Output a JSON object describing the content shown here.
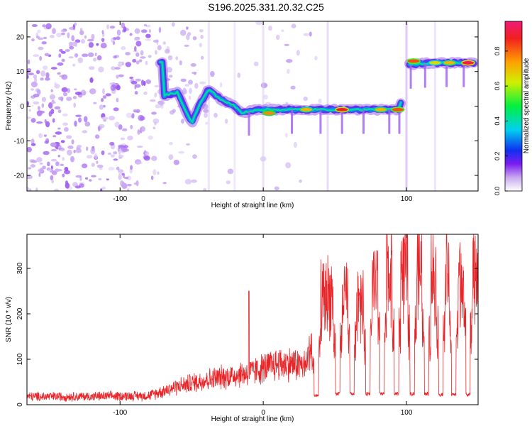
{
  "page": {
    "title": "S196.2025.331.20.32.C25"
  },
  "chart_data": [
    {
      "type": "heatmap",
      "name": "spectrogram",
      "xlabel": "Height of straight line (km)",
      "ylabel": "Frequency (Hz)",
      "xlim": [
        -165,
        150
      ],
      "ylim": [
        -24.5,
        24.5
      ],
      "xticks": [
        -100,
        0,
        100
      ],
      "yticks": [
        -20,
        -10,
        0,
        10,
        20
      ],
      "colorbar": {
        "label": "Normalized spectral amplitude",
        "range": [
          0,
          0.97
        ],
        "ticks": [
          0.0,
          0.2,
          0.4,
          0.6,
          0.8
        ],
        "colors": [
          "#ffffff",
          "#c8a8f0",
          "#7a1cf0",
          "#1030f0",
          "#00d0f0",
          "#00f040",
          "#d0f000",
          "#ffa000",
          "#f02020",
          "#f01a78"
        ]
      },
      "ridge": [
        {
          "x": -70,
          "y": 3
        },
        {
          "x": -60,
          "y": 4
        },
        {
          "x": -50,
          "y": -5
        },
        {
          "x": -45,
          "y": 0
        },
        {
          "x": -38,
          "y": 5
        },
        {
          "x": -30,
          "y": 2
        },
        {
          "x": -20,
          "y": 0
        },
        {
          "x": -15,
          "y": -2
        },
        {
          "x": -5,
          "y": -1
        },
        {
          "x": 10,
          "y": -1
        },
        {
          "x": 30,
          "y": -1
        },
        {
          "x": 50,
          "y": -1
        },
        {
          "x": 70,
          "y": -1
        },
        {
          "x": 95,
          "y": -1
        },
        {
          "x": 102,
          "y": 12
        },
        {
          "x": 120,
          "y": 12.5
        },
        {
          "x": 145,
          "y": 12.5
        }
      ],
      "hotspots": [
        {
          "x": 4,
          "y": -2,
          "amp": 0.8
        },
        {
          "x": 30,
          "y": -1,
          "amp": 0.75
        },
        {
          "x": 55,
          "y": -1,
          "amp": 0.9
        },
        {
          "x": 82,
          "y": -1,
          "amp": 0.75
        },
        {
          "x": 94,
          "y": -1,
          "amp": 0.85
        },
        {
          "x": 105,
          "y": 13,
          "amp": 0.85
        },
        {
          "x": 120,
          "y": 12.5,
          "amp": 0.7
        },
        {
          "x": 130,
          "y": 12.5,
          "amp": 0.75
        },
        {
          "x": 143,
          "y": 12.5,
          "amp": 0.95
        }
      ]
    },
    {
      "type": "line",
      "name": "snr",
      "xlabel": "Height of straight line (km)",
      "ylabel": "SNR (10 * v/v)",
      "xlim": [
        -165,
        150
      ],
      "ylim": [
        0,
        375
      ],
      "xticks": [
        -100,
        0,
        100
      ],
      "yticks": [
        0,
        100,
        200,
        300
      ],
      "color": "#e8262a",
      "envelope": [
        {
          "x": -165,
          "y": 18
        },
        {
          "x": -120,
          "y": 18
        },
        {
          "x": -80,
          "y": 20
        },
        {
          "x": -60,
          "y": 40
        },
        {
          "x": -40,
          "y": 55
        },
        {
          "x": -20,
          "y": 65
        },
        {
          "x": -10,
          "y": 70
        },
        {
          "x": 0,
          "y": 80
        },
        {
          "x": 10,
          "y": 90
        },
        {
          "x": 20,
          "y": 90
        },
        {
          "x": 30,
          "y": 85
        },
        {
          "x": 35,
          "y": 160
        },
        {
          "x": 40,
          "y": 230
        },
        {
          "x": 50,
          "y": 250
        },
        {
          "x": 60,
          "y": 230
        },
        {
          "x": 70,
          "y": 250
        },
        {
          "x": 80,
          "y": 270
        },
        {
          "x": 90,
          "y": 300
        },
        {
          "x": 100,
          "y": 300
        },
        {
          "x": 110,
          "y": 290
        },
        {
          "x": 120,
          "y": 285
        },
        {
          "x": 130,
          "y": 280
        },
        {
          "x": 140,
          "y": 290
        },
        {
          "x": 150,
          "y": 300
        }
      ],
      "spikes": [
        {
          "x": -10,
          "y": 250
        },
        {
          "x": -58,
          "y": 30
        }
      ],
      "dips": [
        {
          "x": 37,
          "y": 15
        },
        {
          "x": 52,
          "y": 20
        },
        {
          "x": 62,
          "y": 20
        },
        {
          "x": 73,
          "y": 20
        },
        {
          "x": 83,
          "y": 20
        },
        {
          "x": 93,
          "y": 20
        },
        {
          "x": 104,
          "y": 20
        },
        {
          "x": 114,
          "y": 20
        },
        {
          "x": 124,
          "y": 18
        },
        {
          "x": 133,
          "y": 18
        },
        {
          "x": 143,
          "y": 18
        }
      ]
    }
  ]
}
